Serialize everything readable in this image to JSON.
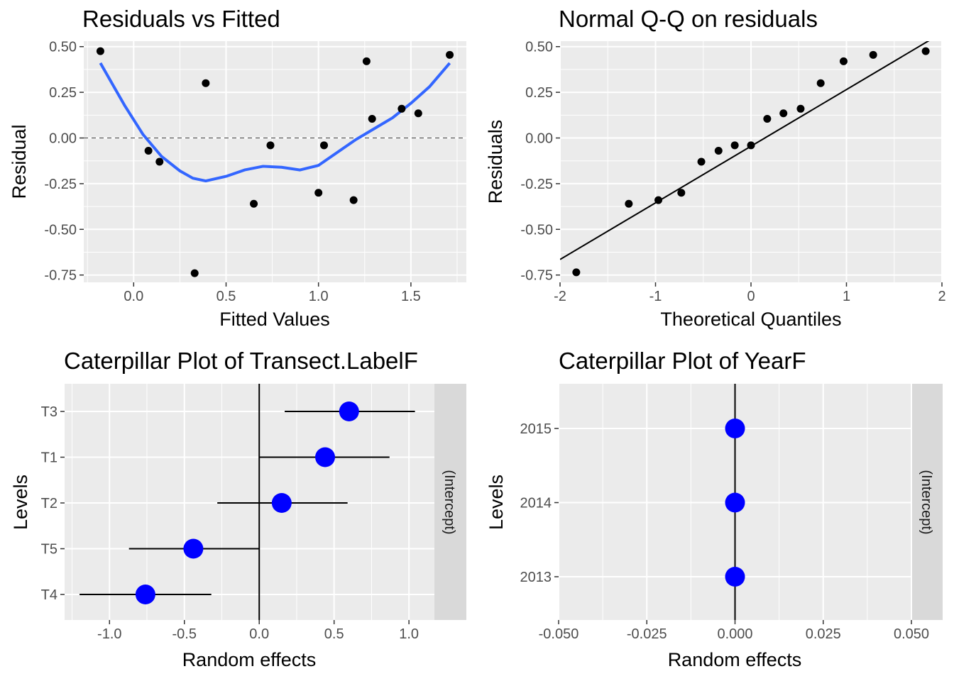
{
  "chart_data": [
    {
      "id": "residuals_vs_fitted",
      "type": "scatter",
      "title": "Residuals vs Fitted",
      "xlabel": "Fitted Values",
      "ylabel": "Residual",
      "xlim": [
        -0.27,
        1.8
      ],
      "ylim": [
        -0.79,
        0.53
      ],
      "x_ticks": [
        0.0,
        0.5,
        1.0,
        1.5
      ],
      "x_tick_labels": [
        "0.0",
        "0.5",
        "1.0",
        "1.5"
      ],
      "y_ticks": [
        -0.75,
        -0.5,
        -0.25,
        0.0,
        0.25,
        0.5
      ],
      "y_tick_labels": [
        "-0.75",
        "-0.50",
        "-0.25",
        "0.00",
        "0.25",
        "0.50"
      ],
      "reference_line": {
        "y": 0,
        "style": "dashed"
      },
      "points": [
        {
          "x": -0.18,
          "y": 0.475
        },
        {
          "x": 0.08,
          "y": -0.07
        },
        {
          "x": 0.14,
          "y": -0.13
        },
        {
          "x": 0.33,
          "y": -0.74
        },
        {
          "x": 0.39,
          "y": 0.3
        },
        {
          "x": 0.65,
          "y": -0.36
        },
        {
          "x": 0.74,
          "y": -0.04
        },
        {
          "x": 1.0,
          "y": -0.3
        },
        {
          "x": 1.03,
          "y": -0.04
        },
        {
          "x": 1.19,
          "y": -0.34
        },
        {
          "x": 1.26,
          "y": 0.42
        },
        {
          "x": 1.29,
          "y": 0.105
        },
        {
          "x": 1.45,
          "y": 0.16
        },
        {
          "x": 1.54,
          "y": 0.135
        },
        {
          "x": 1.71,
          "y": 0.455
        }
      ],
      "smooth": {
        "color": "#3366ff",
        "x": [
          -0.18,
          -0.05,
          0.05,
          0.15,
          0.25,
          0.32,
          0.39,
          0.5,
          0.6,
          0.7,
          0.8,
          0.9,
          1.0,
          1.1,
          1.2,
          1.3,
          1.4,
          1.5,
          1.6,
          1.71
        ],
        "y": [
          0.41,
          0.18,
          0.02,
          -0.1,
          -0.18,
          -0.22,
          -0.235,
          -0.21,
          -0.175,
          -0.155,
          -0.16,
          -0.175,
          -0.15,
          -0.08,
          -0.01,
          0.05,
          0.11,
          0.19,
          0.28,
          0.41
        ]
      }
    },
    {
      "id": "normal_qq",
      "type": "scatter",
      "title": "Normal Q-Q on residuals",
      "xlabel": "Theoretical Quantiles",
      "ylabel": "Residuals",
      "xlim": [
        -2.0,
        2.0
      ],
      "ylim": [
        -0.79,
        0.53
      ],
      "x_ticks": [
        -2,
        -1,
        0,
        1,
        2
      ],
      "x_tick_labels": [
        "-2",
        "-1",
        "0",
        "1",
        "2"
      ],
      "y_ticks": [
        -0.75,
        -0.5,
        -0.25,
        0.0,
        0.25,
        0.5
      ],
      "y_tick_labels": [
        "-0.75",
        "-0.50",
        "-0.25",
        "0.00",
        "0.25",
        "0.50"
      ],
      "reference_line": {
        "intercept": -0.045,
        "slope": 0.31
      },
      "points": [
        {
          "x": -1.83,
          "y": -0.735
        },
        {
          "x": -1.28,
          "y": -0.36
        },
        {
          "x": -0.97,
          "y": -0.34
        },
        {
          "x": -0.73,
          "y": -0.3
        },
        {
          "x": -0.52,
          "y": -0.13
        },
        {
          "x": -0.34,
          "y": -0.07
        },
        {
          "x": -0.17,
          "y": -0.04
        },
        {
          "x": 0.0,
          "y": -0.04
        },
        {
          "x": 0.17,
          "y": 0.105
        },
        {
          "x": 0.34,
          "y": 0.135
        },
        {
          "x": 0.52,
          "y": 0.16
        },
        {
          "x": 0.73,
          "y": 0.3
        },
        {
          "x": 0.97,
          "y": 0.42
        },
        {
          "x": 1.28,
          "y": 0.455
        },
        {
          "x": 1.83,
          "y": 0.475
        }
      ]
    },
    {
      "id": "caterpillar_transect",
      "type": "scatter",
      "title": "Caterpillar Plot of  Transect.LabelF",
      "xlabel": "Random effects",
      "ylabel": "Levels",
      "strip_label": "(Intercept)",
      "xlim": [
        -1.3,
        1.17
      ],
      "x_ticks": [
        -1.0,
        -0.5,
        0.0,
        0.5,
        1.0
      ],
      "x_tick_labels": [
        "-1.0",
        "-0.5",
        "0.0",
        "0.5",
        "1.0"
      ],
      "vline_x": 0,
      "categories": [
        "T4",
        "T5",
        "T2",
        "T1",
        "T3"
      ],
      "estimates": [
        -0.76,
        -0.44,
        0.15,
        0.44,
        0.6
      ],
      "lower": [
        -1.2,
        -0.87,
        -0.28,
        0.0,
        0.17
      ],
      "upper": [
        -0.32,
        0.0,
        0.59,
        0.87,
        1.04
      ]
    },
    {
      "id": "caterpillar_year",
      "type": "scatter",
      "title": "Caterpillar Plot of  YearF",
      "xlabel": "Random effects",
      "ylabel": "Levels",
      "strip_label": "(Intercept)",
      "xlim": [
        -0.05,
        0.05
      ],
      "x_ticks": [
        -0.05,
        -0.025,
        0.0,
        0.025,
        0.05
      ],
      "x_tick_labels": [
        "-0.050",
        "-0.025",
        "0.000",
        "0.025",
        "0.050"
      ],
      "vline_x": 0,
      "categories": [
        "2013",
        "2014",
        "2015"
      ],
      "estimates": [
        0.0,
        0.0,
        0.0
      ],
      "lower": [
        0.0,
        0.0,
        0.0
      ],
      "upper": [
        0.0,
        0.0,
        0.0
      ]
    }
  ]
}
